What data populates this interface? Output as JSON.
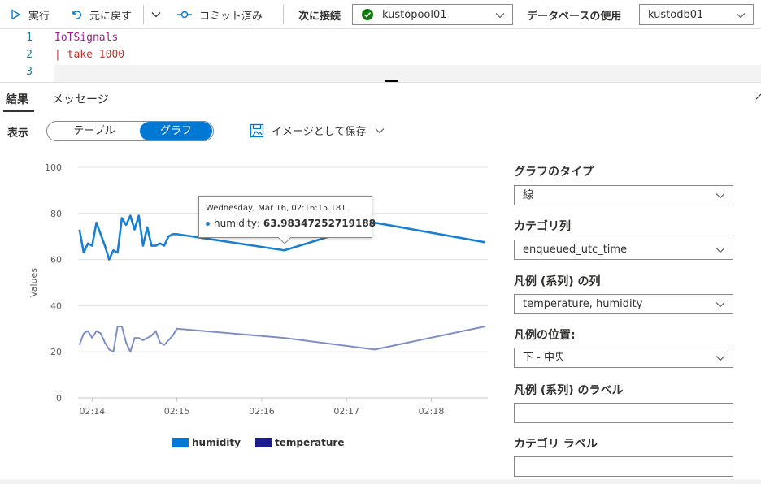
{
  "toolbar": {
    "run_label": "実行",
    "undo_label": "元に戻す",
    "commit_label": "コミット済み",
    "connect_label": "次に接続",
    "pool_value": "kustopool01",
    "db_label": "データベースの使用",
    "db_value": "kustodb01"
  },
  "editor": {
    "lines": [
      {
        "num": "1",
        "text": "IoTSignals"
      },
      {
        "num": "2",
        "text": "| take 1000"
      },
      {
        "num": "3",
        "text": ""
      }
    ]
  },
  "result_tabs": [
    "結果",
    "メッセージ"
  ],
  "view": {
    "label": "表示",
    "table_label": "テーブル",
    "chart_label": "グラフ",
    "save_image_label": "イメージとして保存"
  },
  "colors": {
    "accent": "#0078d4",
    "humidity": "#1a7fd0",
    "temperature": "#7f8ec6",
    "temperature_legend": "#1c1c8c",
    "connected": "#107c10"
  },
  "chart_data": {
    "type": "line",
    "ylabel": "Values",
    "ylim": [
      0,
      100
    ],
    "yticks": [
      "0",
      "20",
      "40",
      "60",
      "80",
      "100"
    ],
    "xlim": [
      "02:13:50",
      "02:18:40"
    ],
    "xticks": [
      "02:14",
      "02:15",
      "02:16",
      "02:17",
      "02:18"
    ],
    "grid": true,
    "legend_position": "bottom-center",
    "series": [
      {
        "name": "humidity",
        "x": [
          "02:13:51",
          "02:13:54",
          "02:13:57",
          "02:14:00",
          "02:14:03",
          "02:14:06",
          "02:14:09",
          "02:14:12",
          "02:14:15",
          "02:14:18",
          "02:14:21",
          "02:14:24",
          "02:14:27",
          "02:14:30",
          "02:14:33",
          "02:14:36",
          "02:14:39",
          "02:14:42",
          "02:14:45",
          "02:14:48",
          "02:14:51",
          "02:14:54",
          "02:14:57",
          "02:15:00",
          "02:16:16",
          "02:17:20",
          "02:18:38"
        ],
        "values": [
          73,
          63,
          67,
          66,
          76,
          71,
          66,
          60,
          64,
          63,
          78,
          75,
          79,
          73,
          79,
          66,
          74,
          66,
          66,
          67,
          66,
          70,
          71,
          71,
          64,
          76,
          67.5
        ]
      },
      {
        "name": "temperature",
        "x": [
          "02:13:51",
          "02:13:54",
          "02:13:57",
          "02:14:00",
          "02:14:03",
          "02:14:06",
          "02:14:09",
          "02:14:12",
          "02:14:15",
          "02:14:18",
          "02:14:21",
          "02:14:24",
          "02:14:27",
          "02:14:30",
          "02:14:33",
          "02:14:36",
          "02:14:39",
          "02:14:42",
          "02:14:45",
          "02:14:48",
          "02:14:51",
          "02:14:54",
          "02:14:57",
          "02:15:00",
          "02:16:16",
          "02:17:20",
          "02:18:38"
        ],
        "values": [
          23,
          28,
          29,
          26,
          29,
          28,
          24,
          21,
          20,
          31,
          31,
          24,
          20,
          26,
          26,
          25,
          26,
          27,
          29,
          24,
          23,
          25,
          27,
          30,
          26,
          21,
          31
        ]
      }
    ],
    "tooltip": {
      "title": "Wednesday, Mar 16, 02:16:15.181",
      "series": "humidity",
      "value": "63.98347252719188"
    }
  },
  "settings": {
    "chart_type_label": "グラフのタイプ",
    "chart_type_value": "線",
    "category_label": "カテゴリ列",
    "category_value": "enqueued_utc_time",
    "legend_cols_label": "凡例 (系列) の列",
    "legend_cols_value": "temperature, humidity",
    "legend_pos_label": "凡例の位置:",
    "legend_pos_value": "下 - 中央",
    "legend_series_label": "凡例 (系列) のラベル",
    "category_axis_label": "カテゴリ ラベル"
  }
}
